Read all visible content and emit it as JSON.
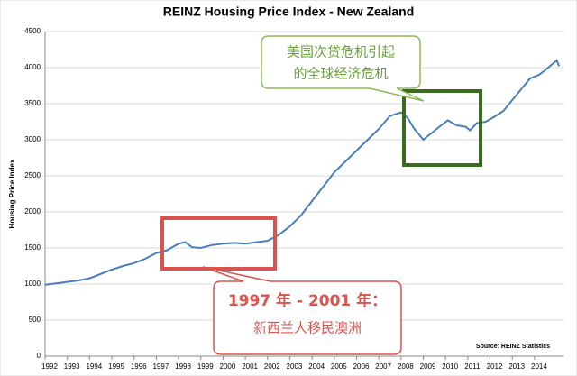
{
  "chart_data": {
    "type": "line",
    "title": "REINZ Housing Price Index - New Zealand",
    "y_label": "Housing Price Index",
    "source": "Source: REINZ Statistics",
    "color": "#4a7ebb",
    "grid": true,
    "xlim": [
      1992,
      2015.3
    ],
    "ylim": [
      0,
      4500
    ],
    "xticks": [
      1992,
      1993,
      1994,
      1995,
      1996,
      1997,
      1998,
      1999,
      2000,
      2001,
      2002,
      2003,
      2004,
      2005,
      2006,
      2007,
      2008,
      2009,
      2010,
      2011,
      2012,
      2013,
      2014
    ],
    "yticks": [
      0,
      500,
      1000,
      1500,
      2000,
      2500,
      3000,
      3500,
      4000,
      4500
    ],
    "x": [
      1992.0,
      1992.5,
      1993.0,
      1993.5,
      1994.0,
      1994.5,
      1995.0,
      1995.5,
      1996.0,
      1996.5,
      1997.0,
      1997.5,
      1998.0,
      1998.3,
      1998.6,
      1999.0,
      1999.5,
      2000.0,
      2000.5,
      2001.0,
      2001.5,
      2002.0,
      2002.5,
      2003.0,
      2003.5,
      2004.0,
      2004.5,
      2005.0,
      2005.5,
      2006.0,
      2006.5,
      2007.0,
      2007.5,
      2008.0,
      2008.3,
      2008.6,
      2009.0,
      2009.4,
      2009.8,
      2010.1,
      2010.5,
      2010.9,
      2011.1,
      2011.4,
      2011.8,
      2012.2,
      2012.6,
      2013.0,
      2013.4,
      2013.8,
      2014.2,
      2014.5,
      2014.8,
      2015.0,
      2015.1
    ],
    "values": [
      990,
      1010,
      1030,
      1050,
      1080,
      1140,
      1200,
      1250,
      1290,
      1350,
      1430,
      1470,
      1560,
      1580,
      1510,
      1500,
      1540,
      1560,
      1570,
      1560,
      1580,
      1600,
      1680,
      1800,
      1950,
      2150,
      2350,
      2550,
      2700,
      2850,
      3000,
      3150,
      3330,
      3380,
      3300,
      3150,
      3000,
      3100,
      3200,
      3270,
      3200,
      3180,
      3130,
      3230,
      3250,
      3320,
      3400,
      3550,
      3700,
      3850,
      3900,
      3970,
      4050,
      4100,
      4020
    ],
    "annotations": [
      [
        "美国次贷危机引起",
        "的全球经济危机"
      ],
      [
        "1997 年 - 2001 年：",
        "新西兰人移民澳洲"
      ]
    ]
  }
}
